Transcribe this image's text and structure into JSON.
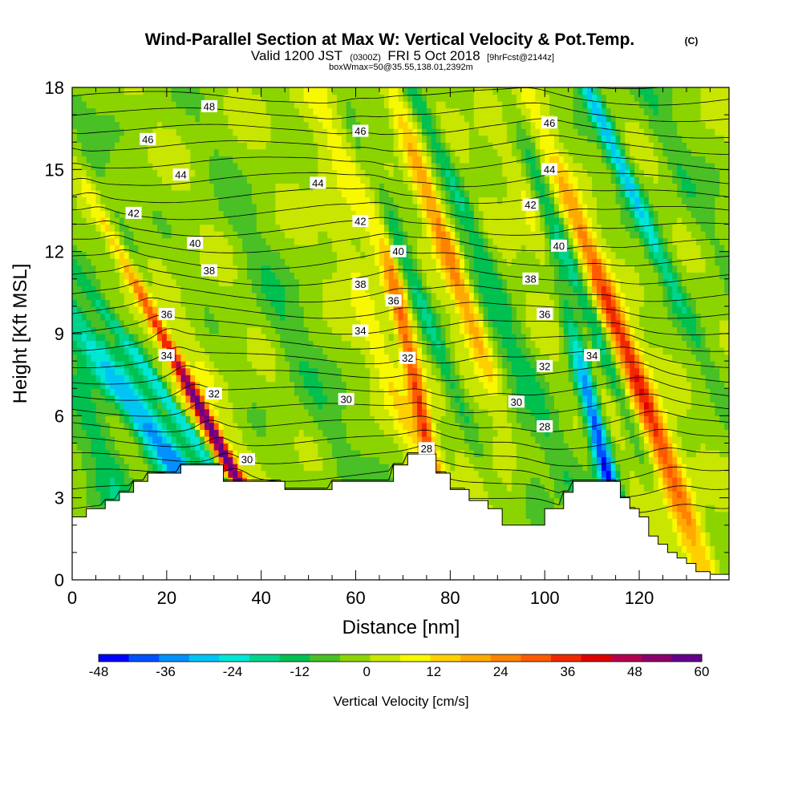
{
  "header": {
    "title": "Wind-Parallel Section at Max W: Vertical Velocity & Pot.Temp.",
    "copyright": "(C)",
    "valid_prefix": "Valid 1200 JST",
    "valid_zulu": "(0300Z)",
    "valid_date": "FRI 5 Oct 2018",
    "forecast": "[9hrFcst@2144z]",
    "box_info": "boxWmax=50@35.55,138.01,2392m"
  },
  "chart_data": {
    "type": "heatmap",
    "title": "Wind-Parallel Section at Max W: Vertical Velocity & Pot.Temp.",
    "xlabel": "Distance [nm]",
    "ylabel": "Height [Kft MSL]",
    "xlim": [
      0,
      139
    ],
    "ylim": [
      0,
      18
    ],
    "x_ticks": [
      0,
      20,
      40,
      60,
      80,
      100,
      120
    ],
    "x_tick_labels": [
      "0",
      "20",
      "40",
      "60",
      "80",
      "100",
      "120"
    ],
    "y_ticks": [
      0,
      3,
      6,
      9,
      12,
      15,
      18
    ],
    "y_tick_labels": [
      "0",
      "3",
      "6",
      "9",
      "12",
      "15",
      "18"
    ],
    "colorbar": {
      "label": "Vertical Velocity [cm/s]",
      "min": -48,
      "max": 60,
      "step": 6,
      "tick_values": [
        -48,
        -36,
        -24,
        -12,
        0,
        12,
        24,
        36,
        48,
        60
      ],
      "tick_labels": [
        "-48",
        "-36",
        "-24",
        "-12",
        "0",
        "12",
        "24",
        "36",
        "48",
        "60"
      ],
      "colors": [
        "#0000ff",
        "#0050ff",
        "#0090ff",
        "#00c4f4",
        "#00e6d6",
        "#00d48c",
        "#00c050",
        "#48c026",
        "#8cd400",
        "#c8e600",
        "#f8f800",
        "#ffd000",
        "#ffaa00",
        "#ff8200",
        "#ff5a00",
        "#f02800",
        "#dc0000",
        "#b4004e",
        "#8c006e",
        "#64008c"
      ]
    },
    "terrain": [
      [
        0,
        2.3
      ],
      [
        3,
        2.6
      ],
      [
        7,
        2.9
      ],
      [
        10,
        3.2
      ],
      [
        13,
        3.6
      ],
      [
        16,
        3.9
      ],
      [
        20,
        3.9
      ],
      [
        23,
        4.2
      ],
      [
        28,
        4.2
      ],
      [
        32,
        4.2
      ],
      [
        32,
        3.6
      ],
      [
        39,
        3.6
      ],
      [
        45,
        3.6
      ],
      [
        45,
        3.3
      ],
      [
        52,
        3.3
      ],
      [
        55,
        3.6
      ],
      [
        63,
        3.6
      ],
      [
        68,
        4.2
      ],
      [
        71,
        4.6
      ],
      [
        74,
        4.6
      ],
      [
        77,
        3.9
      ],
      [
        80,
        3.3
      ],
      [
        84,
        2.9
      ],
      [
        88,
        2.6
      ],
      [
        91,
        2.3
      ],
      [
        91,
        2.0
      ],
      [
        97,
        2.0
      ],
      [
        100,
        2.6
      ],
      [
        104,
        3.2
      ],
      [
        106,
        3.6
      ],
      [
        110,
        3.6
      ],
      [
        114,
        3.6
      ],
      [
        116,
        3.0
      ],
      [
        118,
        2.6
      ],
      [
        120,
        2.3
      ],
      [
        122,
        1.6
      ],
      [
        124,
        1.3
      ],
      [
        126,
        1.0
      ],
      [
        128,
        0.8
      ],
      [
        130,
        0.6
      ],
      [
        132,
        0.3
      ],
      [
        135,
        0.2
      ],
      [
        139,
        0.1
      ]
    ],
    "features": [
      {
        "sign": "up",
        "x0": 31,
        "y0": 5.0,
        "slope": -3.0,
        "width": 1.5,
        "amp": 56
      },
      {
        "sign": "up",
        "x0": 34,
        "y0": 4.0,
        "slope": -2.4,
        "width": 4.5,
        "amp": 18
      },
      {
        "sign": "down",
        "x0": 30,
        "y0": 6.0,
        "slope": -2.8,
        "width": 2.5,
        "amp": -16
      },
      {
        "sign": "down",
        "x0": 20,
        "y0": 4.6,
        "slope": -4.0,
        "width": 4.0,
        "amp": -36
      },
      {
        "sign": "down",
        "x0": 28,
        "y0": 4.6,
        "slope": -4.0,
        "width": 1.8,
        "amp": -30
      },
      {
        "sign": "up",
        "x0": 74,
        "y0": 6.0,
        "slope": -1.2,
        "width": 1.8,
        "amp": 38
      },
      {
        "sign": "up",
        "x0": 79.5,
        "y0": 12,
        "slope": -2.0,
        "width": 2.5,
        "amp": 34
      },
      {
        "sign": "up",
        "x0": 86,
        "y0": 4,
        "slope": -2.0,
        "width": 4.0,
        "amp": 10
      },
      {
        "sign": "down",
        "x0": 74,
        "y0": 10,
        "slope": -2.2,
        "width": 2.5,
        "amp": -26
      },
      {
        "sign": "down",
        "x0": 77,
        "y0": 16,
        "slope": -2.5,
        "width": 2.0,
        "amp": -16
      },
      {
        "sign": "down",
        "x0": 113,
        "y0": 4,
        "slope": -1.4,
        "width": 2.0,
        "amp": -50
      },
      {
        "sign": "down",
        "x0": 111,
        "y0": 9,
        "slope": -2.2,
        "width": 2.2,
        "amp": -24
      },
      {
        "sign": "down",
        "x0": 114,
        "y0": 16,
        "slope": -2.5,
        "width": 2.0,
        "amp": -30
      },
      {
        "sign": "up",
        "x0": 116,
        "y0": 9,
        "slope": -2.2,
        "width": 2.3,
        "amp": 32
      },
      {
        "sign": "up",
        "x0": 122,
        "y0": 5,
        "slope": -2.0,
        "width": 4.0,
        "amp": 12
      },
      {
        "sign": "up",
        "x0": 130,
        "y0": 2,
        "slope": -2.0,
        "width": 3.0,
        "amp": 14
      },
      {
        "sign": "down",
        "x0": 48,
        "y0": 8,
        "slope": -2.4,
        "width": 4.0,
        "amp": -10
      },
      {
        "sign": "up",
        "x0": 60,
        "y0": 14,
        "slope": -2.4,
        "width": 4.0,
        "amp": 12
      },
      {
        "sign": "up",
        "x0": 66,
        "y0": 8,
        "slope": -2.0,
        "width": 2.5,
        "amp": 12
      },
      {
        "sign": "down",
        "x0": 94,
        "y0": 8,
        "slope": -2.5,
        "width": 3.0,
        "amp": -10
      },
      {
        "sign": "up",
        "x0": 101,
        "y0": 12,
        "slope": -2.5,
        "width": 3.5,
        "amp": 12
      },
      {
        "sign": "up",
        "x0": 22,
        "y0": 9,
        "slope": -2.5,
        "width": 3.0,
        "amp": 10
      },
      {
        "sign": "down",
        "x0": 9,
        "y0": 14,
        "slope": -2.5,
        "width": 3.0,
        "amp": -10
      },
      {
        "sign": "down",
        "x0": 126,
        "y0": 16,
        "slope": -2.5,
        "width": 3.0,
        "amp": -10
      },
      {
        "sign": "down",
        "x0": 8,
        "y0": 4,
        "slope": -2.0,
        "width": 4.0,
        "amp": -14
      },
      {
        "sign": "down",
        "x0": 98,
        "y0": 3,
        "slope": -2.0,
        "width": 3.0,
        "amp": -14
      }
    ],
    "contour_labels": [
      {
        "text": "48",
        "x": 29,
        "y": 17.3
      },
      {
        "text": "46",
        "x": 16,
        "y": 16.1
      },
      {
        "text": "46",
        "x": 61,
        "y": 16.4
      },
      {
        "text": "46",
        "x": 101,
        "y": 16.7
      },
      {
        "text": "44",
        "x": 23,
        "y": 14.8
      },
      {
        "text": "44",
        "x": 52,
        "y": 14.5
      },
      {
        "text": "44",
        "x": 101,
        "y": 15.0
      },
      {
        "text": "42",
        "x": 13,
        "y": 13.4
      },
      {
        "text": "42",
        "x": 61,
        "y": 13.1
      },
      {
        "text": "42",
        "x": 97,
        "y": 13.7
      },
      {
        "text": "40",
        "x": 26,
        "y": 12.3
      },
      {
        "text": "40",
        "x": 69,
        "y": 12.0
      },
      {
        "text": "40",
        "x": 103,
        "y": 12.2
      },
      {
        "text": "38",
        "x": 29,
        "y": 11.3
      },
      {
        "text": "38",
        "x": 61,
        "y": 10.8
      },
      {
        "text": "38",
        "x": 97,
        "y": 11.0
      },
      {
        "text": "36",
        "x": 20,
        "y": 9.7
      },
      {
        "text": "36",
        "x": 68,
        "y": 10.2
      },
      {
        "text": "36",
        "x": 100,
        "y": 9.7
      },
      {
        "text": "34",
        "x": 20,
        "y": 8.2
      },
      {
        "text": "34",
        "x": 61,
        "y": 9.1
      },
      {
        "text": "34",
        "x": 110,
        "y": 8.2
      },
      {
        "text": "32",
        "x": 30,
        "y": 6.8
      },
      {
        "text": "32",
        "x": 71,
        "y": 8.1
      },
      {
        "text": "32",
        "x": 100,
        "y": 7.8
      },
      {
        "text": "30",
        "x": 58,
        "y": 6.6
      },
      {
        "text": "30",
        "x": 37,
        "y": 4.4
      },
      {
        "text": "30",
        "x": 94,
        "y": 6.5
      },
      {
        "text": "28",
        "x": 75,
        "y": 4.8
      },
      {
        "text": "28",
        "x": 100,
        "y": 5.6
      }
    ]
  }
}
